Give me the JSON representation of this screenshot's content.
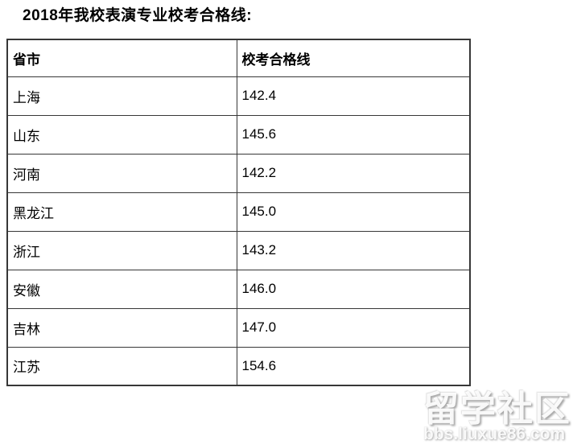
{
  "page": {
    "title": "2018年我校表演专业校考合格线:"
  },
  "table": {
    "columns": [
      "省市",
      "校考合格线"
    ],
    "rows": [
      {
        "province": "上海",
        "score": "142.4"
      },
      {
        "province": "山东",
        "score": "145.6"
      },
      {
        "province": "河南",
        "score": "142.2"
      },
      {
        "province": "黑龙江",
        "score": "145.0"
      },
      {
        "province": "浙江",
        "score": "143.2"
      },
      {
        "province": "安徽",
        "score": "146.0"
      },
      {
        "province": "吉林",
        "score": "147.0"
      },
      {
        "province": "江苏",
        "score": "154.6"
      }
    ]
  },
  "watermark": {
    "site_name": "留学社区",
    "site_url": "bbs.liuxue86.com"
  },
  "colors": {
    "border": "#373737",
    "text": "#000000",
    "background": "#ffffff"
  }
}
